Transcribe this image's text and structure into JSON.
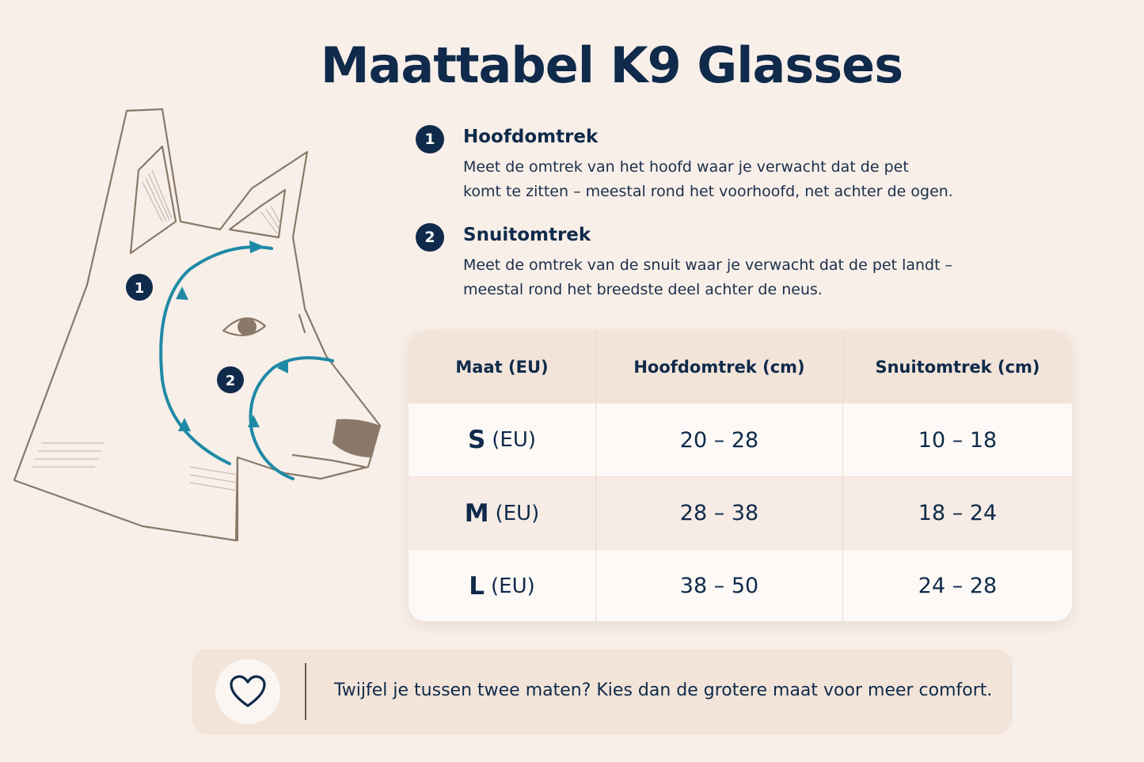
{
  "title": "Maattabel K9 Glasses",
  "diagram": {
    "marker_1": "1",
    "marker_2": "2",
    "measure_color": "#1f8aa5",
    "line_color": "#8a7868"
  },
  "steps": [
    {
      "number": "1",
      "title": "Hoofdomtrek",
      "line1": "Meet de omtrek van het hoofd waar je verwacht dat de pet",
      "line2": "komt te zitten – meestal rond het voorhoofd, net achter de ogen."
    },
    {
      "number": "2",
      "title": "Snuitomtrek",
      "line1": "Meet de omtrek van de snuit waar je verwacht dat de pet landt –",
      "line2": "meestal rond het breedste deel achter de neus."
    }
  ],
  "table": {
    "headers": [
      "Maat (EU)",
      "Hoofdomtrek (cm)",
      "Snuitomtrek (cm)"
    ],
    "rows": [
      {
        "size": "S",
        "unit": "(EU)",
        "head": "20 – 28",
        "snout": "10 – 18"
      },
      {
        "size": "M",
        "unit": "(EU)",
        "head": "28 – 38",
        "snout": "18 – 24"
      },
      {
        "size": "L",
        "unit": "(EU)",
        "head": "38 – 50",
        "snout": "24 – 28"
      }
    ]
  },
  "note": {
    "icon": "heart-icon",
    "text": "Twijfel je tussen twee maten? Kies dan de grotere maat voor meer comfort."
  }
}
